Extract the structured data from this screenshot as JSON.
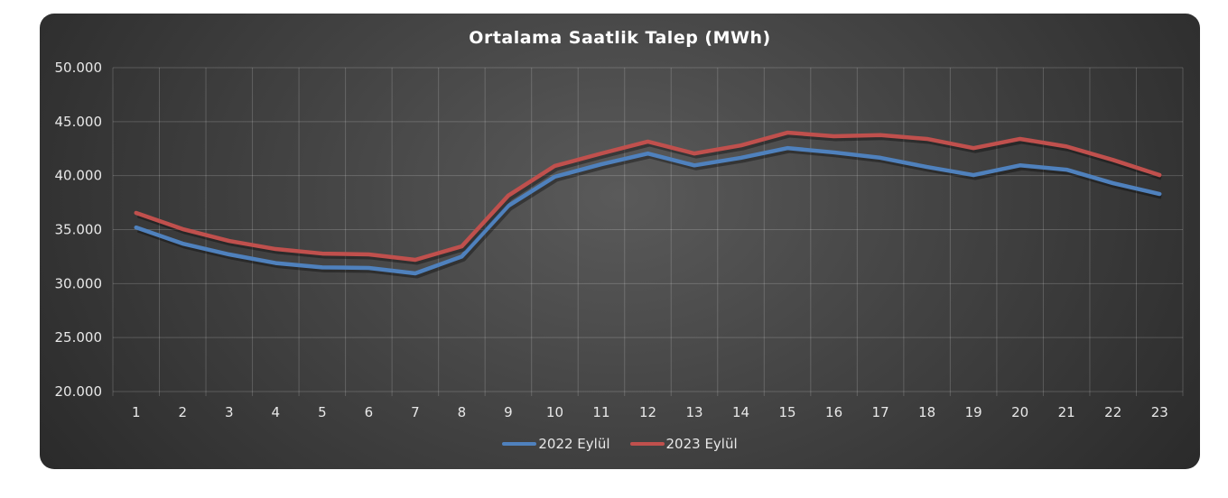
{
  "chart_data": {
    "type": "line",
    "title": "Ortalama Saatlik Talep (MWh)",
    "xlabel": "",
    "ylabel": "",
    "categories": [
      "1",
      "2",
      "3",
      "4",
      "5",
      "6",
      "7",
      "8",
      "9",
      "10",
      "11",
      "12",
      "13",
      "14",
      "15",
      "16",
      "17",
      "18",
      "19",
      "20",
      "21",
      "22",
      "23"
    ],
    "ylim": [
      20000,
      50000
    ],
    "yticks": [
      "20.000",
      "25.000",
      "30.000",
      "35.000",
      "40.000",
      "45.000",
      "50.000"
    ],
    "ytick_values": [
      20000,
      25000,
      30000,
      35000,
      40000,
      45000,
      50000
    ],
    "grid": true,
    "legend_position": "bottom",
    "series": [
      {
        "name": "2022 Eylül",
        "color": "#4f81bd",
        "values": [
          35200,
          33700,
          32700,
          31900,
          31500,
          31450,
          30950,
          32500,
          37200,
          39900,
          41050,
          42050,
          40950,
          41650,
          42550,
          42150,
          41650,
          40800,
          40050,
          40950,
          40550,
          39300,
          38300
        ]
      },
      {
        "name": "2023 Eylül",
        "color": "#c0504d",
        "values": [
          36550,
          35050,
          33950,
          33200,
          32780,
          32700,
          32200,
          33450,
          38150,
          40900,
          42050,
          43150,
          42050,
          42800,
          43980,
          43650,
          43750,
          43400,
          42550,
          43400,
          42700,
          41450,
          40050
        ]
      }
    ]
  }
}
